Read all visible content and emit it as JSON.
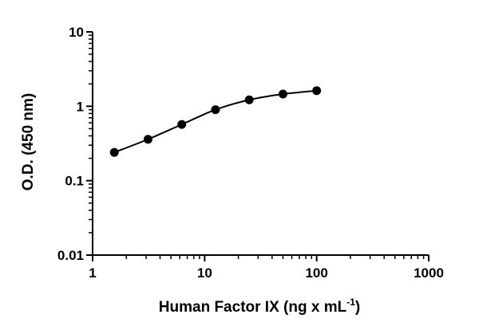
{
  "chart_data": {
    "type": "line",
    "xlabel": "Human Factor IX (ng x mL",
    "xlabel_sup": "-1",
    "xlabel_close": ")",
    "ylabel": "O.D. (450 nm)",
    "x_scale": "log",
    "y_scale": "log",
    "xlim": [
      1,
      1000
    ],
    "ylim": [
      0.01,
      10
    ],
    "x_ticks": [
      1,
      10,
      100,
      1000
    ],
    "x_tick_labels": [
      "1",
      "10",
      "100",
      "1000"
    ],
    "y_ticks": [
      0.01,
      0.1,
      1,
      10
    ],
    "y_tick_labels": [
      "0.01",
      "0.1",
      "1",
      "10"
    ],
    "grid": false,
    "legend": false,
    "series": [
      {
        "x": [
          1.5625,
          3.125,
          6.25,
          12.5,
          25,
          50,
          100
        ],
        "y": [
          0.24,
          0.36,
          0.57,
          0.9,
          1.22,
          1.46,
          1.62
        ]
      }
    ],
    "colors": {
      "line": "#000000",
      "marker": "#000000"
    }
  }
}
